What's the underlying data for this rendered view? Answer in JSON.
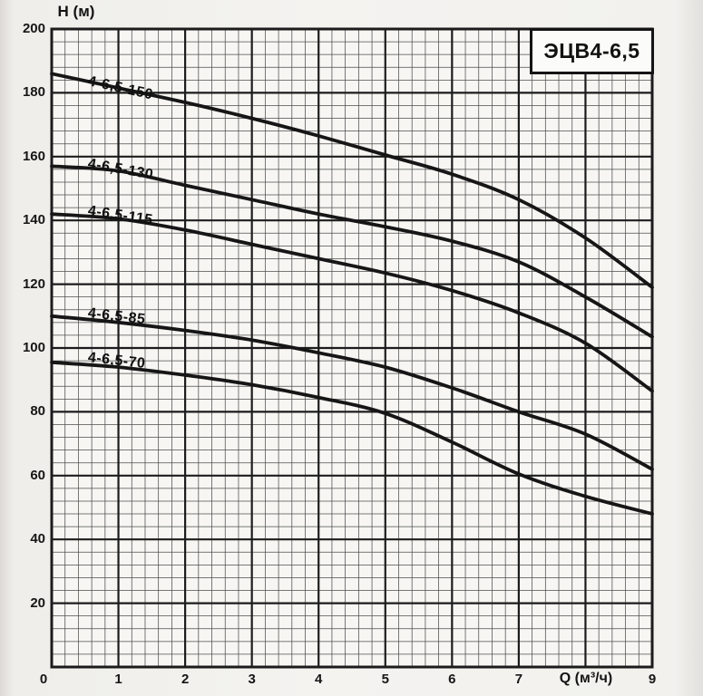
{
  "colors": {
    "curve": "#161616",
    "grid_major": "#1c1c1c",
    "grid_minor": "#4e4e4e",
    "plot_background": "#f7f6f3",
    "paper": "#f2f1ee",
    "title_box_background": "#fbfbf9"
  },
  "chart_data": {
    "type": "line",
    "title": "ЭЦВ4-6,5",
    "xlabel": "Q (м³/ч)",
    "ylabel": "H (м)",
    "xlim": [
      0,
      9
    ],
    "ylim": [
      0,
      200
    ],
    "grid": "major-and-minor",
    "legend_position": "inline-curve-labels",
    "x_major_tick_step": 1,
    "y_major_tick_step": 20,
    "x_minor_divisions_per_major": 5,
    "y_minor_divisions_per_major": 5,
    "y_tick_labels": [
      "200",
      "180",
      "160",
      "140",
      "120",
      "100",
      "80",
      "60",
      "40",
      "20"
    ],
    "y_tick_values": [
      200,
      180,
      160,
      140,
      120,
      100,
      80,
      60,
      40,
      20
    ],
    "x_tick_labels": [
      "0",
      "1",
      "2",
      "3",
      "4",
      "5",
      "6",
      "7",
      "9"
    ],
    "x_tick_values": [
      0,
      1,
      2,
      3,
      4,
      5,
      6,
      7,
      9
    ],
    "xlabel_position_q": 8,
    "x": [
      0,
      1,
      2,
      3,
      4,
      5,
      6,
      7,
      8,
      9
    ],
    "series": [
      {
        "name": "4-6,5-150",
        "values": [
          186,
          181.5,
          177,
          172,
          166.5,
          160.5,
          154.5,
          146.5,
          134.5,
          119
        ]
      },
      {
        "name": "4-6,5-130",
        "values": [
          157,
          155.5,
          151,
          146.5,
          142,
          138,
          133.5,
          127,
          116,
          103.5
        ]
      },
      {
        "name": "4-6,5-115",
        "values": [
          142,
          140.5,
          137,
          132.5,
          128,
          123.5,
          118,
          111,
          101.5,
          86.5
        ]
      },
      {
        "name": "4-6,5-85",
        "values": [
          110,
          108,
          105.5,
          102.5,
          98.5,
          94,
          87.5,
          80,
          73,
          62
        ]
      },
      {
        "name": "4-6,5-70",
        "values": [
          95.5,
          94,
          91.5,
          88.5,
          84.5,
          79.5,
          70.5,
          60.5,
          53.5,
          48
        ]
      }
    ]
  }
}
